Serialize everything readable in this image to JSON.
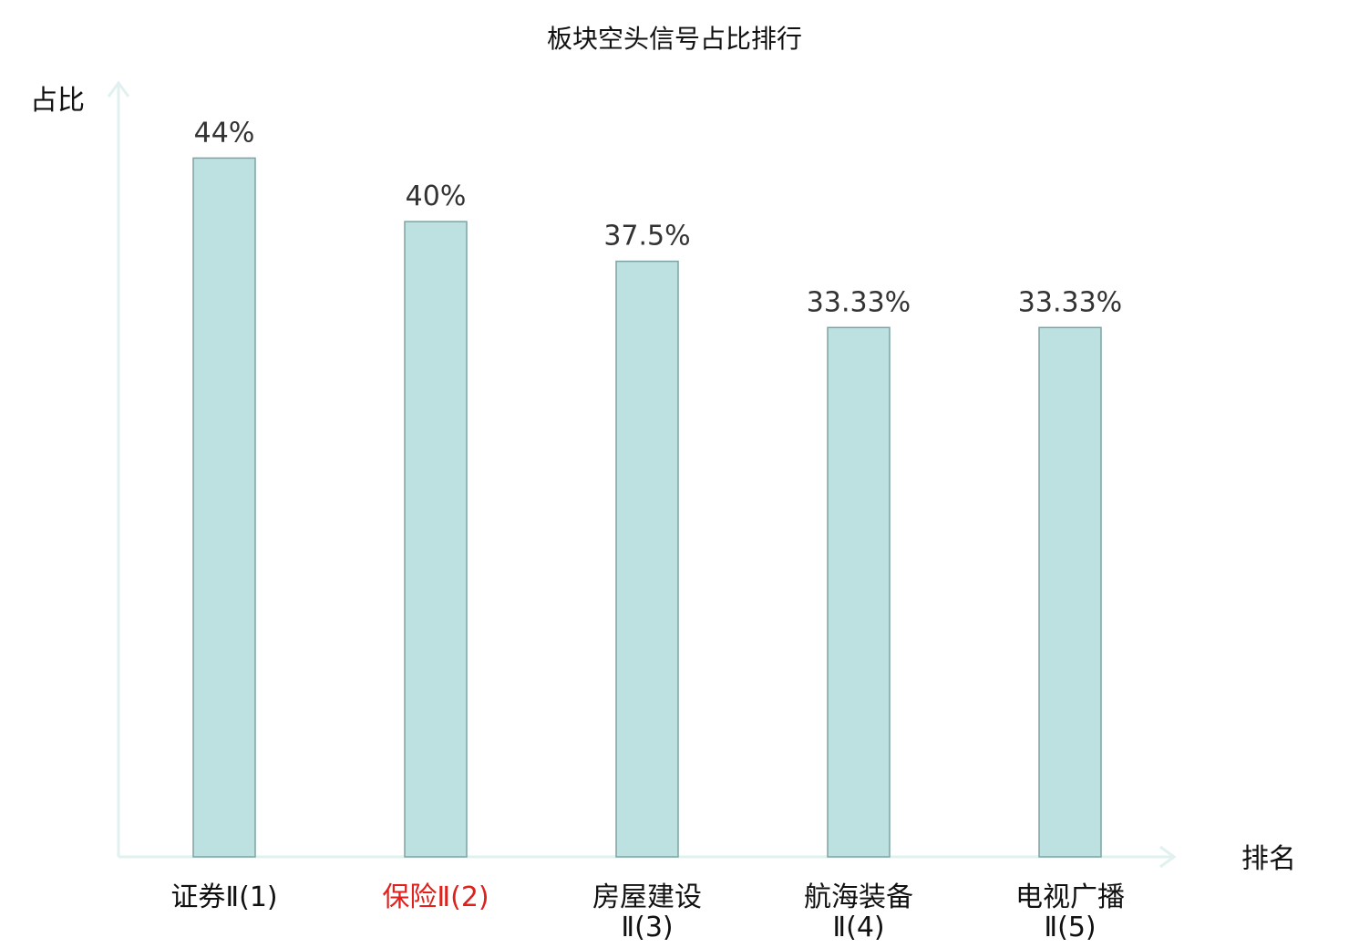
{
  "chart_data": {
    "type": "bar",
    "title": "板块空头信号占比排行",
    "ylabel": "占比",
    "xlabel": "排名",
    "categories": [
      {
        "lines": [
          "证券Ⅱ(1)"
        ],
        "color": "#111111"
      },
      {
        "lines": [
          "保险Ⅱ(2)"
        ],
        "color": "#e0201b"
      },
      {
        "lines": [
          "房屋建设",
          "Ⅱ(3)"
        ],
        "color": "#111111"
      },
      {
        "lines": [
          "航海装备",
          "Ⅱ(4)"
        ],
        "color": "#111111"
      },
      {
        "lines": [
          "电视广播",
          "Ⅱ(5)"
        ],
        "color": "#111111"
      }
    ],
    "values": [
      44,
      40,
      37.5,
      33.33,
      33.33
    ],
    "value_labels": [
      "44%",
      "40%",
      "37.5%",
      "33.33%",
      "33.33%"
    ],
    "ylim": [
      0,
      48.5
    ],
    "grid": false,
    "bar_color": "#bde0e1",
    "axis_color": "#e0f1ef"
  }
}
